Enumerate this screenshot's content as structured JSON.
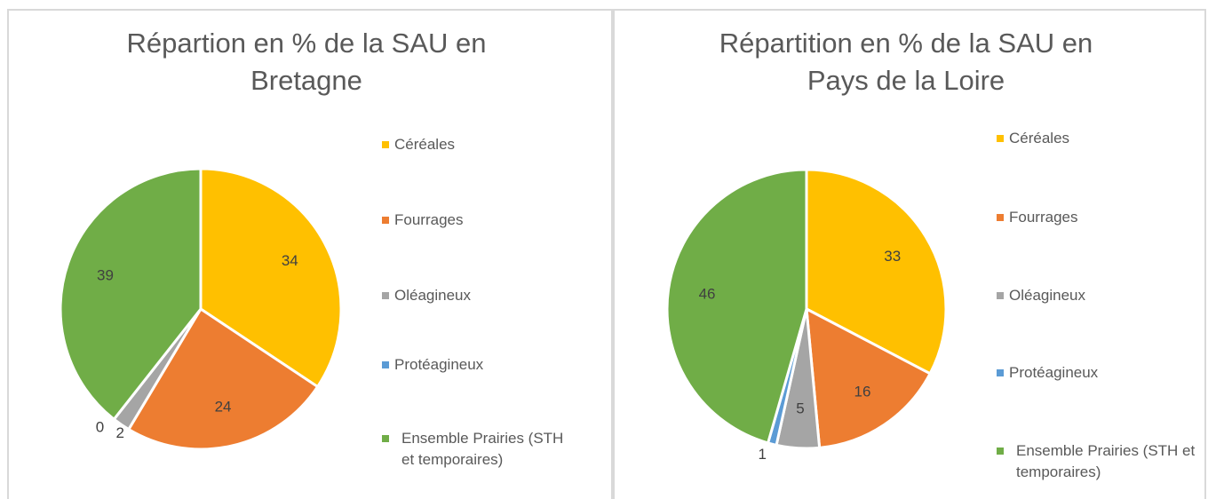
{
  "chart_data": [
    {
      "type": "pie",
      "title": "Répartion en % de la SAU en Bretagne",
      "categories": [
        "Céréales",
        "Fourrages",
        "Oléagineux",
        "Protéagineux",
        "Ensemble Prairies  (STH et temporaires)"
      ],
      "values": [
        34,
        24,
        2,
        0,
        39
      ],
      "colors": [
        "#FFC000",
        "#ED7D31",
        "#A5A5A5",
        "#5B9BD5",
        "#70AD47"
      ],
      "legend": "right"
    },
    {
      "type": "pie",
      "title": "Répartition en % de la SAU en Pays de la Loire",
      "categories": [
        "Céréales",
        "Fourrages",
        "Oléagineux",
        "Protéagineux",
        "Ensemble Prairies (STH et temporaires)"
      ],
      "values": [
        33,
        16,
        5,
        1,
        46
      ],
      "colors": [
        "#FFC000",
        "#ED7D31",
        "#A5A5A5",
        "#5B9BD5",
        "#70AD47"
      ],
      "legend": "right"
    }
  ]
}
